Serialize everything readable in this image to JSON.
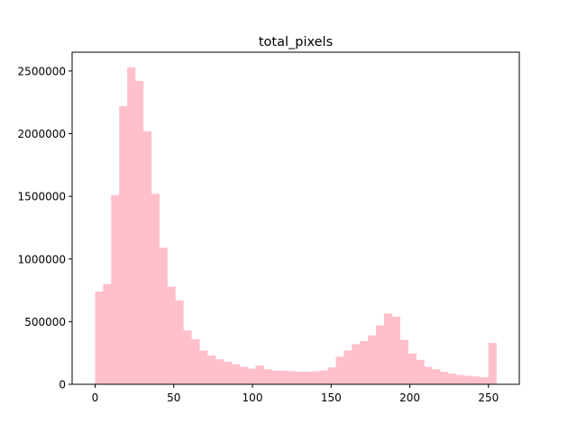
{
  "chart_data": {
    "type": "bar",
    "title": "total_pixels",
    "xlabel": "",
    "ylabel": "",
    "xlim": [
      -14.6,
      269.6
    ],
    "ylim": [
      0,
      2650000
    ],
    "x_ticks": [
      0,
      50,
      100,
      150,
      200,
      250
    ],
    "y_ticks": [
      0,
      500000,
      1000000,
      1500000,
      2000000,
      2500000
    ],
    "grid": false,
    "legend": "none",
    "bin_range": [
      0,
      255
    ],
    "bin_width": 5.1,
    "bar_color": "#ffc0cb",
    "values": [
      740000,
      800000,
      1510000,
      2220000,
      2530000,
      2420000,
      2020000,
      1520000,
      1090000,
      780000,
      670000,
      430000,
      360000,
      270000,
      230000,
      200000,
      180000,
      160000,
      140000,
      125000,
      150000,
      120000,
      108000,
      108000,
      105000,
      100000,
      100000,
      103000,
      110000,
      135000,
      220000,
      270000,
      320000,
      345000,
      390000,
      470000,
      565000,
      540000,
      355000,
      245000,
      195000,
      140000,
      120000,
      100000,
      85000,
      75000,
      68000,
      62000,
      55000,
      330000
    ]
  }
}
